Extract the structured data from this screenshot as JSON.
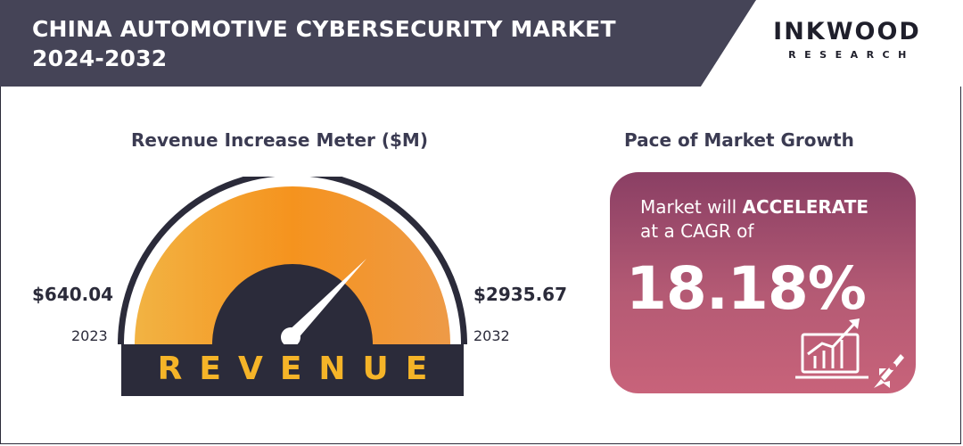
{
  "header": {
    "title_line1": "CHINA AUTOMOTIVE CYBERSECURITY MARKET",
    "title_line2": "2024-2032",
    "brand_name": "INKWOOD",
    "brand_sub": "RESEARCH",
    "bar_color": "#454457"
  },
  "meter": {
    "title": "Revenue Increase Meter ($M)",
    "left_value": "$640.04",
    "left_year": "2023",
    "right_value": "$2935.67",
    "right_year": "2032",
    "label": "REVENUE",
    "icon": "speedometer-gauge"
  },
  "pace": {
    "title": "Pace of Market Growth",
    "line1_prefix": "Market will ",
    "line1_strong": "ACCELERATE",
    "line2": "at a CAGR of",
    "cagr": "18.18%",
    "icon": "growth-chart-rocket-icon"
  }
}
